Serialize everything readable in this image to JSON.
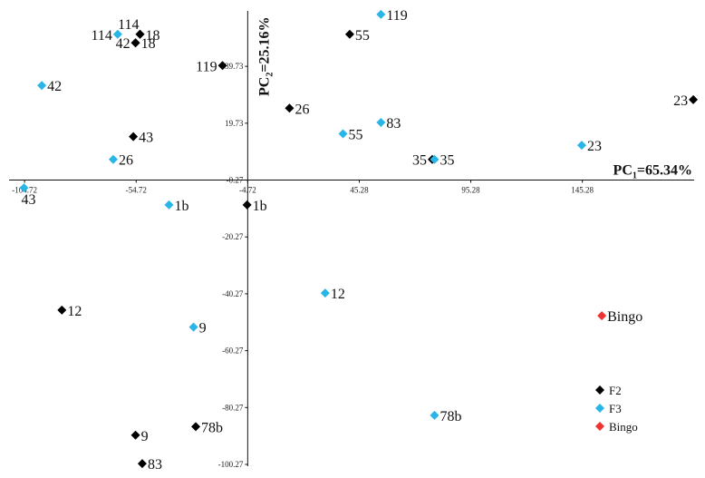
{
  "chart_data": {
    "type": "scatter",
    "xaxis": {
      "label_main": "PC",
      "label_sub": "1",
      "label_value": "=65.34%",
      "ticks": [
        "-104.72",
        "-54.72",
        "-4.72",
        "45.28",
        "95.28",
        "145.28"
      ],
      "tick_values": [
        -104.72,
        -54.72,
        -4.72,
        45.28,
        95.28,
        145.28
      ],
      "range": [
        -106,
        197
      ]
    },
    "yaxis": {
      "label_main": "PC",
      "label_sub": "2",
      "label_value": "=25.16%",
      "ticks": [
        "39.73",
        "19.73",
        "-0.27",
        "-20.27",
        "-40.27",
        "-60.27",
        "-80.27",
        "-100.27"
      ],
      "tick_values": [
        39.73,
        19.73,
        -0.27,
        -20.27,
        -40.27,
        -60.27,
        -80.27,
        -100.27
      ],
      "range": [
        -100.27,
        57
      ]
    },
    "series": [
      {
        "name": "F2",
        "color": "#000000",
        "points": [
          {
            "label": "114",
            "x": -53,
            "y": 51
          },
          {
            "label": "18",
            "x": -53,
            "y": 51
          },
          {
            "label": "42",
            "x": -55,
            "y": 48
          },
          {
            "label": "18",
            "x": -55,
            "y": 48
          },
          {
            "label": "119",
            "x": -16,
            "y": 40
          },
          {
            "label": "55",
            "x": 41,
            "y": 51
          },
          {
            "label": "23",
            "x": 195,
            "y": 28
          },
          {
            "label": "26",
            "x": 14,
            "y": 25
          },
          {
            "label": "43",
            "x": -56,
            "y": 15
          },
          {
            "label": "35",
            "x": 78,
            "y": 7
          },
          {
            "label": "1b",
            "x": -5,
            "y": -9
          },
          {
            "label": "12",
            "x": -88,
            "y": -46
          },
          {
            "label": "78b",
            "x": -28,
            "y": -87
          },
          {
            "label": "9",
            "x": -55,
            "y": -90
          },
          {
            "label": "83",
            "x": -52,
            "y": -100
          }
        ]
      },
      {
        "name": "F3",
        "color": "#29b5e8",
        "points": [
          {
            "label": "114",
            "x": -63,
            "y": 51
          },
          {
            "label": "42",
            "x": -97,
            "y": 33
          },
          {
            "label": "119",
            "x": 55,
            "y": 58
          },
          {
            "label": "83",
            "x": 55,
            "y": 20
          },
          {
            "label": "55",
            "x": 38,
            "y": 16
          },
          {
            "label": "26",
            "x": -65,
            "y": 7
          },
          {
            "label": "35",
            "x": 79,
            "y": 7
          },
          {
            "label": "23",
            "x": 145,
            "y": 12
          },
          {
            "label": "43",
            "x": -105,
            "y": -3
          },
          {
            "label": "1b",
            "x": -40,
            "y": -9
          },
          {
            "label": "12",
            "x": 30,
            "y": -40
          },
          {
            "label": "9",
            "x": -29,
            "y": -52
          },
          {
            "label": "78b",
            "x": 79,
            "y": -83
          }
        ]
      },
      {
        "name": "Bingo",
        "color": "#ee3333",
        "points": [
          {
            "label": "Bingo",
            "x": 154,
            "y": -48
          }
        ]
      }
    ],
    "legend": {
      "position": "bottom-right",
      "entries": [
        "F2",
        "F3",
        "Bingo"
      ]
    },
    "grid": false
  }
}
